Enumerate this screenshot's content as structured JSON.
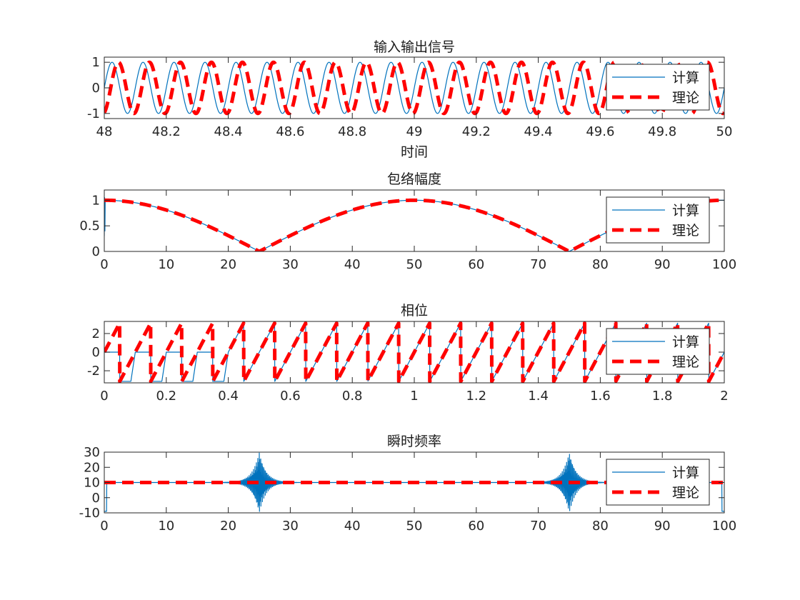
{
  "colors": {
    "computed": "#0072BD",
    "theory": "#FF0000",
    "axis": "#262626"
  },
  "chart_data": [
    {
      "type": "line",
      "title": "输入输出信号",
      "xlabel": "时间",
      "ylabel": "",
      "xlim": [
        48,
        50
      ],
      "ylim": [
        -1.2,
        1.2
      ],
      "xticks": [
        48,
        48.2,
        48.4,
        48.6,
        48.8,
        49,
        49.2,
        49.4,
        49.6,
        49.8,
        50
      ],
      "xtick_labels": [
        "48",
        "48.2",
        "48.4",
        "48.6",
        "48.8",
        "49",
        "49.2",
        "49.4",
        "49.6",
        "49.8",
        "50"
      ],
      "yticks": [
        -1,
        0,
        1
      ],
      "ytick_labels": [
        "-1",
        "0",
        "1"
      ],
      "legend": "top-right",
      "series": [
        {
          "name": "计算",
          "style": "solid",
          "signal": "sine",
          "freq": 10,
          "amplitude": 1,
          "phase": 0
        },
        {
          "name": "理论",
          "style": "dashed",
          "signal": "sine",
          "freq": 10,
          "amplitude": 1,
          "phase": -1.3
        }
      ]
    },
    {
      "type": "line",
      "title": "包络幅度",
      "xlabel": "",
      "ylabel": "",
      "xlim": [
        0,
        100
      ],
      "ylim": [
        0,
        1.2
      ],
      "xticks": [
        0,
        10,
        20,
        30,
        40,
        50,
        60,
        70,
        80,
        90,
        100
      ],
      "xtick_labels": [
        "0",
        "10",
        "20",
        "30",
        "40",
        "50",
        "60",
        "70",
        "80",
        "90",
        "100"
      ],
      "yticks": [
        0,
        0.5,
        1
      ],
      "ytick_labels": [
        "0",
        "0.5",
        "1"
      ],
      "legend": "top-right",
      "series": [
        {
          "name": "计算",
          "style": "solid",
          "signal": "abs-cos",
          "period": 100,
          "start_spike": [
            0.3,
            1.05
          ]
        },
        {
          "name": "理论",
          "style": "dashed",
          "signal": "abs-cos",
          "period": 100
        }
      ]
    },
    {
      "type": "line",
      "title": "相位",
      "xlabel": "",
      "ylabel": "",
      "xlim": [
        0,
        2
      ],
      "ylim": [
        -3.3,
        3.3
      ],
      "xticks": [
        0,
        0.2,
        0.4,
        0.6,
        0.8,
        1,
        1.2,
        1.4,
        1.6,
        1.8,
        2
      ],
      "xtick_labels": [
        "0",
        "0.2",
        "0.4",
        "0.6",
        "0.8",
        "1",
        "1.2",
        "1.4",
        "1.6",
        "1.8",
        "2"
      ],
      "yticks": [
        -2,
        0,
        2
      ],
      "ytick_labels": [
        "-2",
        "0",
        "2"
      ],
      "legend": "top-right",
      "series": [
        {
          "name": "计算",
          "style": "solid",
          "signal": "wrapped-phase",
          "freq": 10,
          "saturated_until": 0.4
        },
        {
          "name": "理论",
          "style": "dashed",
          "signal": "wrapped-phase",
          "freq": 10
        }
      ]
    },
    {
      "type": "line",
      "title": "瞬时频率",
      "xlabel": "",
      "ylabel": "",
      "xlim": [
        0,
        100
      ],
      "ylim": [
        -10,
        30
      ],
      "xticks": [
        0,
        10,
        20,
        30,
        40,
        50,
        60,
        70,
        80,
        90,
        100
      ],
      "xtick_labels": [
        "0",
        "10",
        "20",
        "30",
        "40",
        "50",
        "60",
        "70",
        "80",
        "90",
        "100"
      ],
      "yticks": [
        -10,
        0,
        10,
        20,
        30
      ],
      "ytick_labels": [
        "-10",
        "0",
        "10",
        "20",
        "30"
      ],
      "legend": "top-right",
      "series": [
        {
          "name": "计算",
          "style": "solid",
          "signal": "constant-with-bursts",
          "value": 10,
          "bursts": [
            25,
            75
          ],
          "burst_range": [
            -10,
            30
          ],
          "edge_dips": [
            0,
            100
          ]
        },
        {
          "name": "理论",
          "style": "dashed",
          "signal": "constant",
          "value": 10
        }
      ]
    }
  ]
}
